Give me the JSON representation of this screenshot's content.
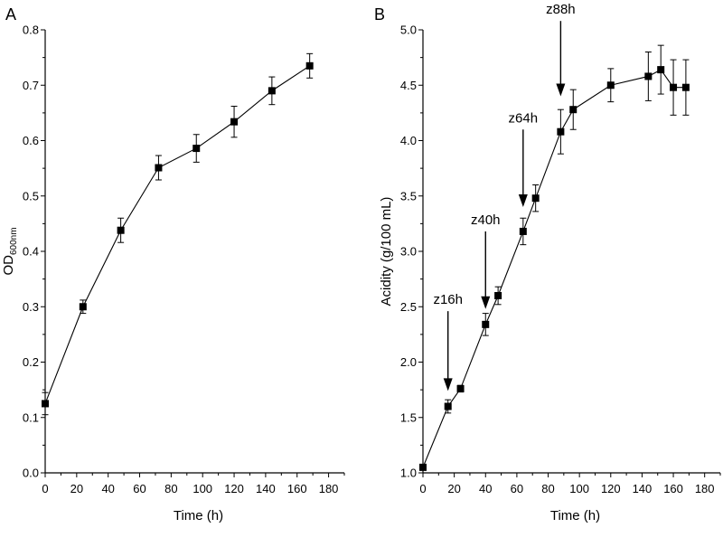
{
  "chart_data": [
    {
      "panel_label": "A",
      "type": "line",
      "xlabel": "Time (h)",
      "ylabel": {
        "main": "OD",
        "subscript": "600nm"
      },
      "xlim": [
        0,
        190
      ],
      "ylim": [
        0.0,
        0.8
      ],
      "x_ticks": [
        "0",
        "20",
        "40",
        "60",
        "80",
        "100",
        "120",
        "140",
        "160",
        "180"
      ],
      "y_ticks": [
        "0.0",
        "0.1",
        "0.2",
        "0.3",
        "0.4",
        "0.5",
        "0.6",
        "0.7",
        "0.8"
      ],
      "grid": false,
      "marker": "square",
      "points": [
        {
          "x": 0,
          "y": 0.125,
          "err": 0.02
        },
        {
          "x": 24,
          "y": 0.3,
          "err": 0.012
        },
        {
          "x": 48,
          "y": 0.438,
          "err": 0.022
        },
        {
          "x": 72,
          "y": 0.551,
          "err": 0.022
        },
        {
          "x": 96,
          "y": 0.586,
          "err": 0.025
        },
        {
          "x": 120,
          "y": 0.634,
          "err": 0.028
        },
        {
          "x": 144,
          "y": 0.69,
          "err": 0.025
        },
        {
          "x": 168,
          "y": 0.735,
          "err": 0.022
        }
      ]
    },
    {
      "panel_label": "B",
      "type": "line",
      "xlabel": "Time (h)",
      "ylabel": "Acidity (g/100 mL)",
      "xlim": [
        0,
        190
      ],
      "ylim": [
        1.0,
        5.0
      ],
      "x_ticks": [
        "0",
        "20",
        "40",
        "60",
        "80",
        "100",
        "120",
        "140",
        "160",
        "180"
      ],
      "y_ticks": [
        "1.0",
        "1.5",
        "2.0",
        "2.5",
        "3.0",
        "3.5",
        "4.0",
        "4.5",
        "5.0"
      ],
      "grid": false,
      "marker": "square",
      "points": [
        {
          "x": 0,
          "y": 1.05,
          "err": 0.0
        },
        {
          "x": 16,
          "y": 1.6,
          "err": 0.06
        },
        {
          "x": 24,
          "y": 1.76,
          "err": 0.03
        },
        {
          "x": 40,
          "y": 2.34,
          "err": 0.1
        },
        {
          "x": 48,
          "y": 2.6,
          "err": 0.08
        },
        {
          "x": 64,
          "y": 3.18,
          "err": 0.12
        },
        {
          "x": 72,
          "y": 3.48,
          "err": 0.12
        },
        {
          "x": 88,
          "y": 4.08,
          "err": 0.2
        },
        {
          "x": 96,
          "y": 4.28,
          "err": 0.18
        },
        {
          "x": 120,
          "y": 4.5,
          "err": 0.15
        },
        {
          "x": 144,
          "y": 4.58,
          "err": 0.22
        },
        {
          "x": 152,
          "y": 4.64,
          "err": 0.22
        },
        {
          "x": 160,
          "y": 4.48,
          "err": 0.25
        },
        {
          "x": 168,
          "y": 4.48,
          "err": 0.25
        }
      ],
      "annotations": [
        {
          "label": "z16h",
          "x": 16,
          "arrow_tip_y": 1.74,
          "arrow_tail_y": 2.46
        },
        {
          "label": "z40h",
          "x": 40,
          "arrow_tip_y": 2.48,
          "arrow_tail_y": 3.18
        },
        {
          "label": "z64h",
          "x": 64,
          "arrow_tip_y": 3.4,
          "arrow_tail_y": 4.1
        },
        {
          "label": "z88h",
          "x": 88,
          "arrow_tip_y": 4.4,
          "arrow_tail_y": 5.08
        }
      ]
    }
  ]
}
